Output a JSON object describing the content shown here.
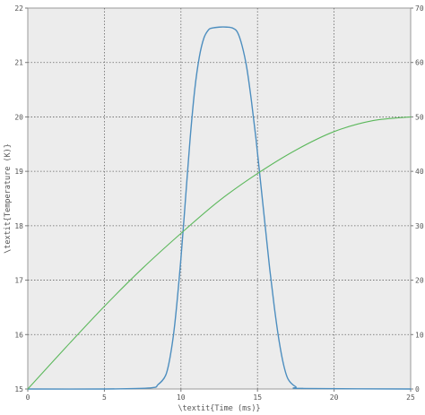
{
  "chart_data": {
    "type": "line",
    "xlabel": "\\textit{Time (ms)}",
    "ylabel": "\\textit{Temperature (K)}",
    "xlim": [
      0,
      25
    ],
    "ylim_left": [
      15,
      22
    ],
    "ylim_right": [
      0,
      70
    ],
    "x_ticks": [
      0,
      5,
      10,
      15,
      20,
      25
    ],
    "y_left_ticks": [
      15,
      16,
      17,
      18,
      19,
      20,
      21,
      22
    ],
    "y_right_ticks": [
      0,
      10,
      20,
      30,
      40,
      50,
      60,
      70
    ],
    "grid": true,
    "background": "#ececec",
    "series": [
      {
        "axis": "left",
        "color": "#4d8ebf",
        "x": [
          0,
          5,
          8,
          8.5,
          9,
          9.3,
          9.6,
          10,
          10.3,
          10.6,
          10.9,
          11.2,
          11.5,
          11.8,
          12,
          12.5,
          13,
          13.4,
          13.7,
          14,
          14.3,
          14.6,
          14.9,
          15.2,
          15.5,
          15.8,
          16.1,
          16.4,
          16.7,
          17,
          17.5,
          18,
          25
        ],
        "y": [
          15,
          15,
          15.02,
          15.08,
          15.25,
          15.6,
          16.2,
          17.4,
          18.5,
          19.6,
          20.5,
          21.1,
          21.45,
          21.6,
          21.63,
          21.65,
          21.65,
          21.63,
          21.55,
          21.3,
          20.9,
          20.3,
          19.6,
          18.8,
          18.0,
          17.2,
          16.5,
          15.9,
          15.45,
          15.18,
          15.04,
          15.01,
          15
        ]
      },
      {
        "axis": "right",
        "color": "#5cb85c",
        "x": [
          0,
          2.5,
          5,
          7.5,
          10,
          12.5,
          15,
          17.5,
          20,
          22.5,
          25
        ],
        "y": [
          0,
          7.7,
          15.2,
          22.2,
          28.6,
          34.6,
          39.6,
          43.9,
          47.3,
          49.3,
          50
        ]
      }
    ]
  }
}
